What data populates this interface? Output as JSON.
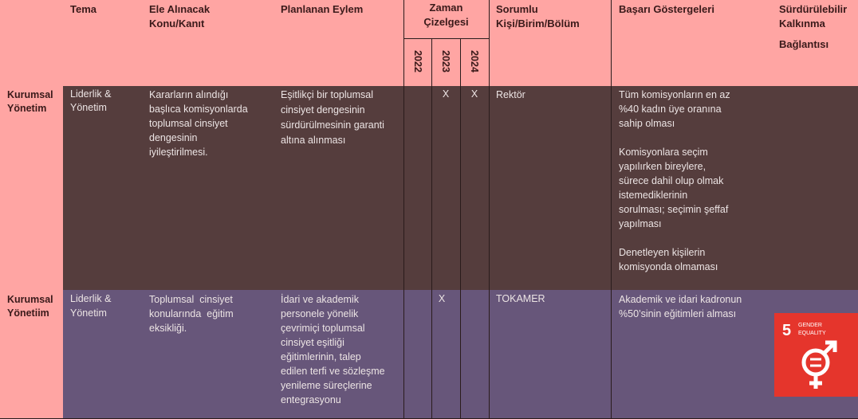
{
  "header": {
    "tema": "Tema",
    "konu_line1": "Ele Alınacak",
    "konu_line2": "Konu/Kanıt",
    "eylem": "Planlanan Eylem",
    "zaman_line1": "Zaman",
    "zaman_line2": "Çizelgesi",
    "years": [
      "2022",
      "2023",
      "2024"
    ],
    "sorumlu_line1": "Sorumlu",
    "sorumlu_line2": "Kişi/Birim/Bölüm",
    "basari": "Başarı Göstergeleri",
    "surdur_line1": "Sürdürülebilir",
    "surdur_line2": "Kalkınma",
    "surdur_line3": "Bağlantısı"
  },
  "rows": [
    {
      "label_line1": "Kurumsal",
      "label_line2": "Yönetim",
      "tema_line1": "Liderlik &",
      "tema_line2": "Yönetim",
      "konu": [
        "Kararların alındığı",
        "başlıca komisyonlarda",
        "toplumsal cinsiyet",
        "dengesinin",
        "iyileştirilmesi."
      ],
      "eylem": [
        "Eşitlikçi bir toplumsal",
        "cinsiyet dengesinin",
        "sürdürülmesinin garanti",
        "altına alınması"
      ],
      "marks": {
        "y2022": "",
        "y2023": "X",
        "y2024": "X"
      },
      "sorumlu": "Rektör",
      "basari": [
        [
          "Tüm komisyonların en az",
          "%40 kadın üye oranına",
          "sahip olması"
        ],
        [
          "Komisyonlara seçim",
          "yapılırken bireylere,",
          "sürece dahil olup olmak",
          "istemediklerinin",
          "sorulması; seçimin şeffaf",
          "yapılması"
        ],
        [
          "Denetleyen kişilerin",
          "komisyonda olmaması"
        ]
      ]
    },
    {
      "label_line1": "Kurumsal",
      "label_line2": "Yönetiim",
      "tema_line1": "Liderlik &",
      "tema_line2": "Yönetim",
      "konu": [
        "Toplumsal  cinsiyet",
        "konularında  eğitim",
        "eksikliği."
      ],
      "eylem": [
        "İdari ve akademik",
        "personele yönelik",
        "çevrimiçi toplumsal",
        "cinsiyet eşitliği",
        "eğitimlerinin, talep",
        "edilen terfi ve sözleşme",
        "yenileme süreçlerine",
        "entegrasyonu"
      ],
      "marks": {
        "y2022": "",
        "y2023": "X",
        "y2024": ""
      },
      "sorumlu": "TOKAMER",
      "basari": [
        [
          "Akademik ve idari kadronun",
          "%50’sinin eğitimleri alması"
        ]
      ],
      "sdg": {
        "number": "5",
        "title_line1": "GENDER",
        "title_line2": "EQUALITY",
        "color": "#e5352c",
        "icon": "gender-equality-icon"
      }
    }
  ]
}
